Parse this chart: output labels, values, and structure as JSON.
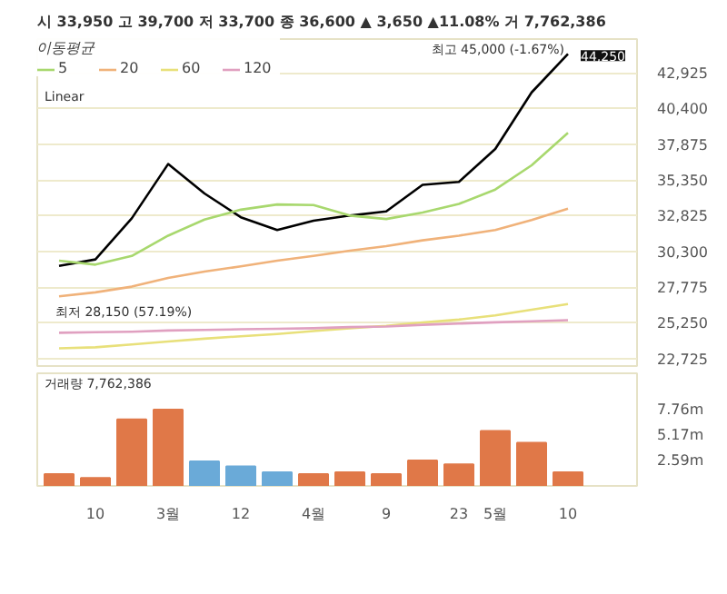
{
  "chart_data": [
    {
      "type": "line",
      "title": "시 33,950 고 39,700 저 33,700 종 36,600 ▲ 3,650 ▲11.08% 거 7,762,386",
      "legend_title": "이동평균",
      "legend": "top left",
      "grid": "y",
      "tick_labels": "y",
      "ylim": [
        22200,
        45300
      ],
      "yticks": [
        {
          "value": 22725,
          "label": "22,725"
        },
        {
          "value": 25250,
          "label": "25,250"
        },
        {
          "value": 27775,
          "label": "27,775"
        },
        {
          "value": 30300,
          "label": "30,300"
        },
        {
          "value": 32825,
          "label": "32,825"
        },
        {
          "value": 35350,
          "label": "35,350"
        },
        {
          "value": 37875,
          "label": "37,875"
        },
        {
          "value": 40400,
          "label": "40,400"
        },
        {
          "value": 42925,
          "label": "42,925"
        }
      ],
      "series": [
        {
          "color": "#000000",
          "values": [
            29280,
            29730,
            32635,
            36470,
            34390,
            32710,
            31815,
            32465,
            32830,
            33125,
            35000,
            35205,
            37535,
            41530,
            44250
          ],
          "value_labels": [
            null,
            null,
            null,
            null,
            null,
            null,
            null,
            null,
            null,
            null,
            null,
            null,
            null,
            null,
            "44,250"
          ]
        },
        {
          "name": "5",
          "color": "#a8d86e",
          "values": [
            29646,
            29364,
            29977,
            31410,
            32549,
            33247,
            33615,
            33575,
            32830,
            32586,
            33039,
            33656,
            34668,
            36383,
            38674
          ]
        },
        {
          "name": "20",
          "color": "#f0b27a",
          "values": [
            27122,
            27404,
            27808,
            28421,
            28874,
            29242,
            29646,
            29977,
            30344,
            30675,
            31079,
            31410,
            31814,
            32512,
            33321
          ]
        },
        {
          "name": "60",
          "color": "#e8e07a",
          "values": [
            23447,
            23521,
            23729,
            23937,
            24133,
            24305,
            24464,
            24672,
            24868,
            25040,
            25285,
            25481,
            25775,
            26179,
            26583
          ]
        },
        {
          "name": "120",
          "color": "#e0a0c0",
          "values": [
            24550,
            24587,
            24627,
            24709,
            24749,
            24795,
            24832,
            24868,
            24954,
            24995,
            25113,
            25199,
            25285,
            25358,
            25444
          ]
        }
      ],
      "annotations": [
        "Linear",
        "최고 45,000 (-1.67%)",
        "최저 28,150 (57.19%)"
      ]
    },
    {
      "type": "bar",
      "categories": [
        null,
        "10",
        null,
        "3월",
        null,
        "12",
        null,
        "4월",
        null,
        "9",
        null,
        "23",
        "5월",
        null,
        "10"
      ],
      "ylim": [
        0,
        11.5
      ],
      "yticks": [
        {
          "value": 2.59,
          "label": "2.59m"
        },
        {
          "value": 5.17,
          "label": "5.17m"
        },
        {
          "value": 7.76,
          "label": "7.76m"
        }
      ],
      "values": [
        1.2,
        0.8,
        6.8,
        7.8,
        2.5,
        2.0,
        1.4,
        1.2,
        1.4,
        1.2,
        2.6,
        2.2,
        5.6,
        4.4,
        1.4
      ],
      "colors": [
        "#e07848",
        "#e07848",
        "#e07848",
        "#e07848",
        "#6aaad8",
        "#6aaad8",
        "#6aaad8",
        "#e07848",
        "#e07848",
        "#e07848",
        "#e07848",
        "#e07848",
        "#e07848",
        "#e07848",
        "#e07848"
      ],
      "annotations": [
        "거래량 7,762,386"
      ]
    }
  ]
}
